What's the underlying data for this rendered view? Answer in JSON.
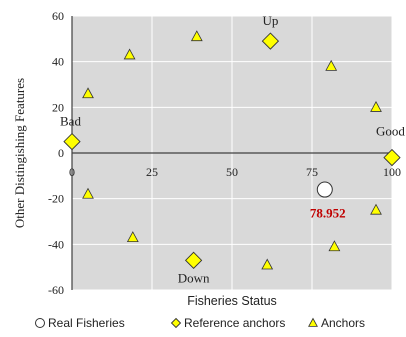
{
  "chart_data": {
    "type": "scatter",
    "xlabel": "Fisheries Status",
    "ylabel": "Other Distingishing Features",
    "xlim": [
      0,
      100
    ],
    "ylim": [
      -60,
      60
    ],
    "xticks": [
      0,
      25,
      50,
      75,
      100
    ],
    "yticks": [
      -60,
      -40,
      -20,
      0,
      20,
      40,
      60
    ],
    "grid": true,
    "background": "#d9d9d9",
    "series": [
      {
        "name": "Real Fisheries",
        "marker": "circle",
        "color": "#ffffff",
        "points": [
          {
            "x": 79,
            "y": -16
          }
        ]
      },
      {
        "name": "Reference anchors",
        "marker": "diamond",
        "color": "#ffff00",
        "points": [
          {
            "x": 0,
            "y": 5
          },
          {
            "x": 100,
            "y": -2
          },
          {
            "x": 62,
            "y": 49
          },
          {
            "x": 38,
            "y": -47
          }
        ]
      },
      {
        "name": "Anchors",
        "marker": "triangle",
        "color": "#ffff00",
        "points": [
          {
            "x": 5,
            "y": 26
          },
          {
            "x": 18,
            "y": 43
          },
          {
            "x": 39,
            "y": 51
          },
          {
            "x": 81,
            "y": 38
          },
          {
            "x": 95,
            "y": 20
          },
          {
            "x": 5,
            "y": -18
          },
          {
            "x": 19,
            "y": -37
          },
          {
            "x": 61,
            "y": -49
          },
          {
            "x": 82,
            "y": -41
          },
          {
            "x": 95,
            "y": -25
          }
        ]
      }
    ],
    "annotations": [
      {
        "text": "Bad",
        "x": 0,
        "y": 5,
        "anchor": "above"
      },
      {
        "text": "Good",
        "x": 100,
        "y": -2,
        "anchor": "above"
      },
      {
        "text": "Up",
        "x": 62,
        "y": 49,
        "anchor": "above"
      },
      {
        "text": "Down",
        "x": 38,
        "y": -47,
        "anchor": "below"
      }
    ],
    "value_label": {
      "text": "78.952",
      "x": 79,
      "y": -16,
      "color": "#c00000"
    },
    "legend": {
      "placement": "bottom",
      "items": [
        "Real Fisheries",
        "Reference anchors",
        "Anchors"
      ]
    }
  }
}
